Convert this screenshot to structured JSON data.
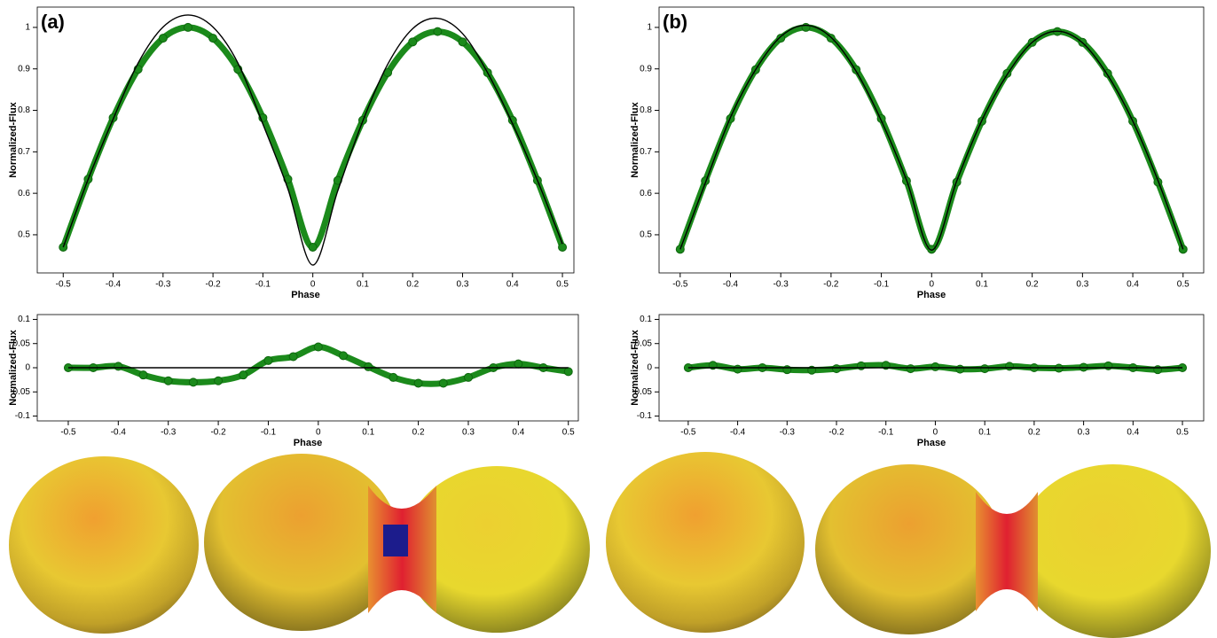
{
  "chart_data": [
    {
      "type": "line",
      "label": "(a)",
      "xlabel": "Phase",
      "ylabel": "Normalized-Flux",
      "x": [
        -0.5,
        -0.45,
        -0.4,
        -0.35,
        -0.3,
        -0.25,
        -0.2,
        -0.15,
        -0.1,
        -0.05,
        0,
        0.05,
        0.1,
        0.15,
        0.2,
        0.25,
        0.3,
        0.35,
        0.4,
        0.45,
        0.5
      ],
      "series": [
        {
          "color": "#1b8a1b",
          "style": "markers",
          "values": [
            0.47,
            0.634,
            0.782,
            0.899,
            0.974,
            1.0,
            0.974,
            0.899,
            0.782,
            0.634,
            0.47,
            0.631,
            0.776,
            0.891,
            0.965,
            0.99,
            0.965,
            0.891,
            0.776,
            0.631,
            0.47
          ]
        },
        {
          "color": "#000000",
          "style": "line",
          "values": [
            0.47,
            0.634,
            0.779,
            0.914,
            1.001,
            1.03,
            1.001,
            0.914,
            0.767,
            0.611,
            0.427,
            0.606,
            0.774,
            0.911,
            0.997,
            1.022,
            0.985,
            0.891,
            0.768,
            0.631,
            0.478
          ]
        }
      ],
      "xlim": [
        -0.552,
        0.523
      ],
      "ylim": [
        0.408,
        1.049
      ],
      "xticks": [
        -0.5,
        -0.4,
        -0.3,
        -0.2,
        -0.1,
        0,
        0.1,
        0.2,
        0.3,
        0.4,
        0.5
      ],
      "yticks": [
        0.5,
        0.6,
        0.7,
        0.8,
        0.9,
        1
      ]
    },
    {
      "type": "line",
      "xlabel": "Phase",
      "ylabel": "Normalized-Flux",
      "x": [
        -0.5,
        -0.45,
        -0.4,
        -0.35,
        -0.3,
        -0.25,
        -0.2,
        -0.15,
        -0.1,
        -0.05,
        0,
        0.05,
        0.1,
        0.15,
        0.2,
        0.25,
        0.3,
        0.35,
        0.4,
        0.45,
        0.5
      ],
      "series": [
        {
          "color": "#1b8a1b",
          "style": "markers",
          "values": [
            0,
            0,
            0.003,
            -0.015,
            -0.027,
            -0.03,
            -0.027,
            -0.015,
            0.015,
            0.023,
            0.043,
            0.025,
            0.002,
            -0.02,
            -0.032,
            -0.032,
            -0.02,
            0,
            0.008,
            0,
            -0.008
          ]
        },
        {
          "color": "#000000",
          "style": "line",
          "values": [
            0,
            0,
            0,
            0,
            0,
            0,
            0,
            0,
            0,
            0,
            0,
            0,
            0,
            0,
            0,
            0,
            0,
            0,
            0,
            0,
            0
          ]
        }
      ],
      "xlim": [
        -0.562,
        0.52
      ],
      "ylim": [
        -0.11,
        0.11
      ],
      "xticks": [
        -0.5,
        -0.4,
        -0.3,
        -0.2,
        -0.1,
        0,
        0.1,
        0.2,
        0.3,
        0.4,
        0.5
      ],
      "yticks": [
        -0.1,
        -0.05,
        0,
        0.05,
        0.1
      ]
    },
    {
      "type": "line",
      "label": "(b)",
      "xlabel": "Phase",
      "ylabel": "Normalized-Flux",
      "x": [
        -0.5,
        -0.45,
        -0.4,
        -0.35,
        -0.3,
        -0.25,
        -0.2,
        -0.15,
        -0.1,
        -0.05,
        0,
        0.05,
        0.1,
        0.15,
        0.2,
        0.25,
        0.3,
        0.35,
        0.4,
        0.45,
        0.5
      ],
      "series": [
        {
          "color": "#1b8a1b",
          "style": "markers",
          "values": [
            0.465,
            0.63,
            0.78,
            0.898,
            0.974,
            1.0,
            0.974,
            0.898,
            0.78,
            0.63,
            0.465,
            0.627,
            0.774,
            0.889,
            0.964,
            0.99,
            0.964,
            0.889,
            0.774,
            0.627,
            0.465
          ]
        },
        {
          "color": "#000000",
          "style": "line",
          "values": [
            0.465,
            0.625,
            0.783,
            0.898,
            0.978,
            1.005,
            0.976,
            0.894,
            0.775,
            0.632,
            0.463,
            0.63,
            0.776,
            0.886,
            0.964,
            0.991,
            0.963,
            0.885,
            0.774,
            0.631,
            0.465
          ]
        }
      ],
      "xlim": [
        -0.542,
        0.541
      ],
      "ylim": [
        0.408,
        1.049
      ],
      "xticks": [
        -0.5,
        -0.4,
        -0.3,
        -0.2,
        -0.1,
        0,
        0.1,
        0.2,
        0.3,
        0.4,
        0.5
      ],
      "yticks": [
        0.5,
        0.6,
        0.7,
        0.8,
        0.9,
        1
      ]
    },
    {
      "type": "line",
      "xlabel": "Phase",
      "ylabel": "Normalized-Flux",
      "x": [
        -0.5,
        -0.45,
        -0.4,
        -0.35,
        -0.3,
        -0.25,
        -0.2,
        -0.15,
        -0.1,
        -0.05,
        0,
        0.05,
        0.1,
        0.15,
        0.2,
        0.25,
        0.3,
        0.35,
        0.4,
        0.45,
        0.5
      ],
      "series": [
        {
          "color": "#1b8a1b",
          "style": "markers",
          "values": [
            0,
            0.005,
            -0.003,
            0,
            -0.004,
            -0.005,
            -0.002,
            0.004,
            0.005,
            -0.002,
            0.002,
            -0.003,
            -0.002,
            0.003,
            0,
            -0.001,
            0.001,
            0.004,
            0,
            -0.004,
            0
          ]
        },
        {
          "color": "#000000",
          "style": "line",
          "values": [
            0,
            0,
            0,
            0,
            0,
            0,
            0,
            0,
            0,
            0,
            0,
            0,
            0,
            0,
            0,
            0,
            0,
            0,
            0,
            0,
            0
          ]
        }
      ],
      "xlim": [
        -0.559,
        0.543
      ],
      "ylim": [
        -0.11,
        0.11
      ],
      "xticks": [
        -0.5,
        -0.4,
        -0.3,
        -0.2,
        -0.1,
        0,
        0.1,
        0.2,
        0.3,
        0.4,
        0.5
      ],
      "yticks": [
        -0.1,
        -0.05,
        0,
        0.05,
        0.1
      ]
    }
  ]
}
